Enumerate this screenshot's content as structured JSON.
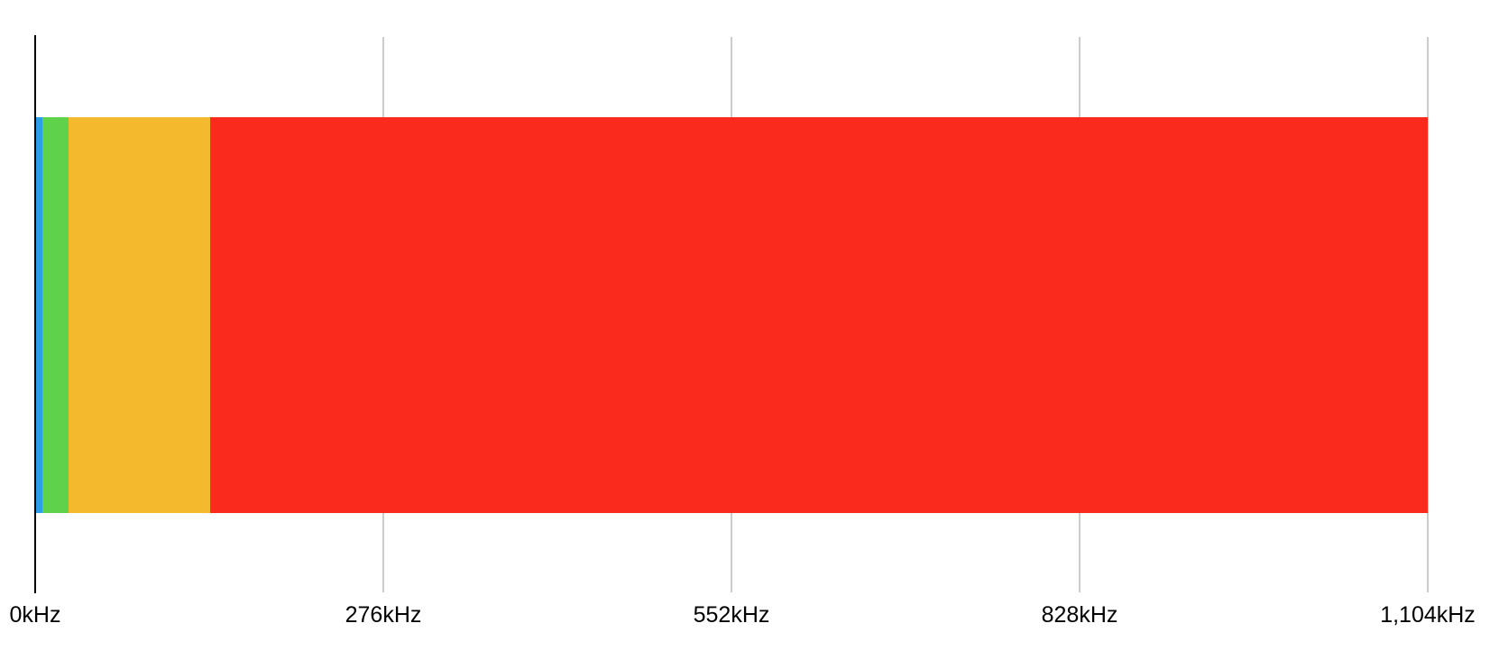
{
  "chart_data": {
    "type": "bar",
    "orientation": "horizontal",
    "stacked": true,
    "title": "",
    "xlabel": "",
    "ylabel": "",
    "unit": "kHz",
    "xlim": [
      0,
      1104
    ],
    "total": 1104,
    "grid": true,
    "legend": false,
    "x_ticks": [
      {
        "value": 0,
        "label": "0kHz"
      },
      {
        "value": 276,
        "label": "276kHz"
      },
      {
        "value": 552,
        "label": "552kHz"
      },
      {
        "value": 828,
        "label": "828kHz"
      },
      {
        "value": 1104,
        "label": "1,104kHz"
      }
    ],
    "segments": [
      {
        "name": "blue-segment",
        "value": 5,
        "color": "#2d9fe9"
      },
      {
        "name": "green-segment",
        "value": 21,
        "color": "#5ed24a"
      },
      {
        "name": "orange-segment",
        "value": 112,
        "color": "#f5b92d"
      },
      {
        "name": "red-segment",
        "value": 966,
        "color": "#fa2b1d"
      }
    ],
    "colors": {
      "background": "#ffffff",
      "axis_line": "#000000",
      "gridline": "#cccccc",
      "tick_label": "#000000"
    }
  }
}
